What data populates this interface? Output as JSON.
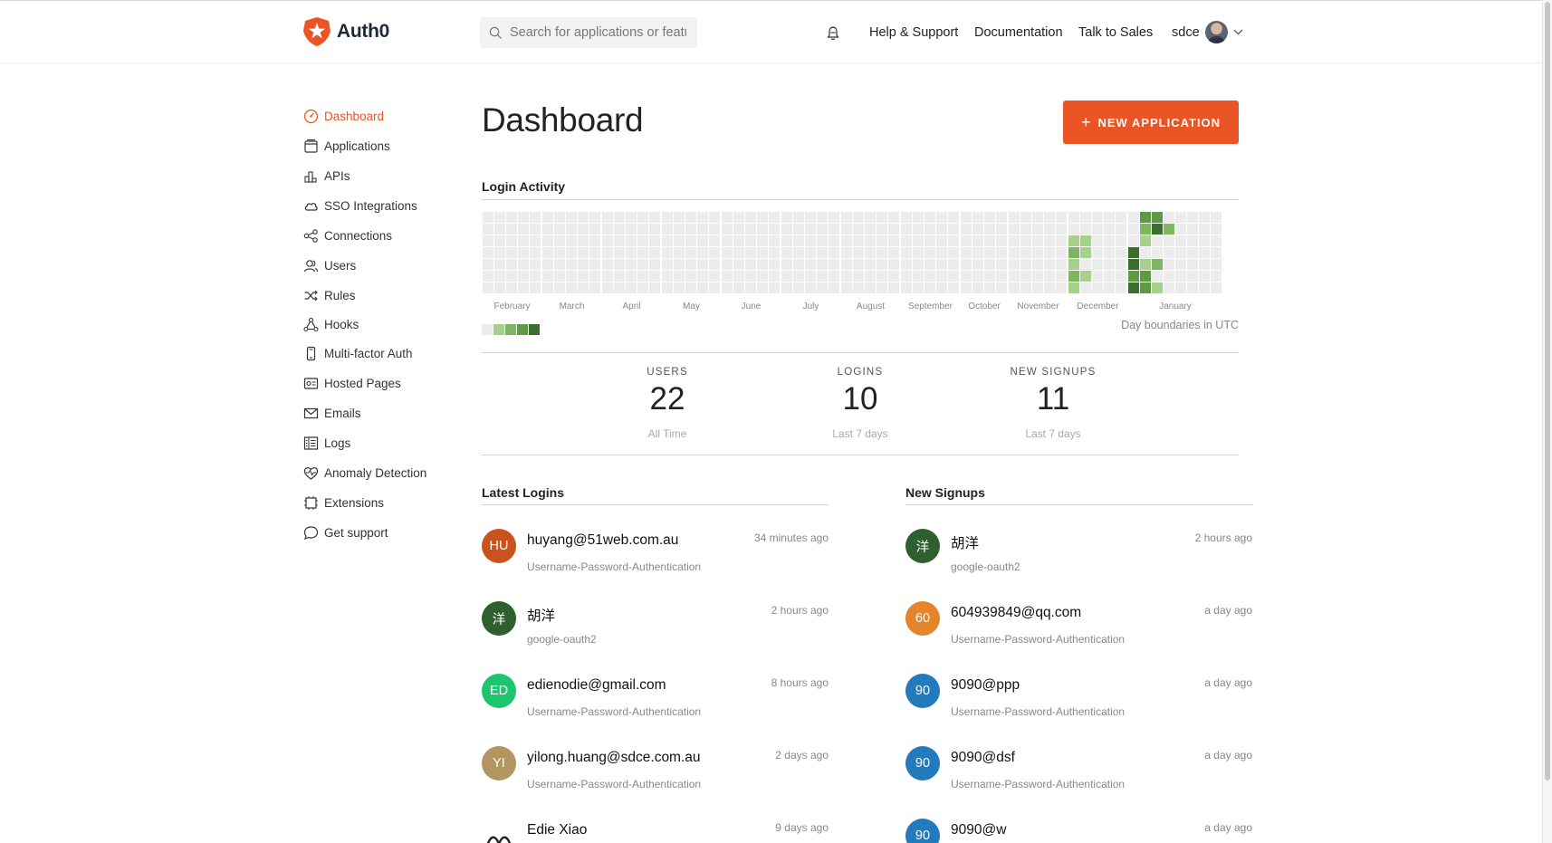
{
  "app": {
    "name": "Auth0"
  },
  "search": {
    "placeholder": "Search for applications or features"
  },
  "topnav": {
    "help": "Help & Support",
    "docs": "Documentation",
    "sales": "Talk to Sales",
    "tenant": "sdce"
  },
  "sidebar": {
    "items": [
      {
        "label": "Dashboard",
        "icon": "dashboard-icon",
        "active": true
      },
      {
        "label": "Applications",
        "icon": "applications-icon"
      },
      {
        "label": "APIs",
        "icon": "apis-icon"
      },
      {
        "label": "SSO Integrations",
        "icon": "cloud-icon"
      },
      {
        "label": "Connections",
        "icon": "connections-icon"
      },
      {
        "label": "Users",
        "icon": "users-icon"
      },
      {
        "label": "Rules",
        "icon": "rules-icon"
      },
      {
        "label": "Hooks",
        "icon": "hooks-icon"
      },
      {
        "label": "Multi-factor Auth",
        "icon": "mfa-icon"
      },
      {
        "label": "Hosted Pages",
        "icon": "hosted-pages-icon"
      },
      {
        "label": "Emails",
        "icon": "email-icon"
      },
      {
        "label": "Logs",
        "icon": "logs-icon"
      },
      {
        "label": "Anomaly Detection",
        "icon": "heart-icon"
      },
      {
        "label": "Extensions",
        "icon": "extensions-icon"
      },
      {
        "label": "Get support",
        "icon": "chat-icon"
      }
    ]
  },
  "main": {
    "title": "Dashboard",
    "new_app_label": "NEW APPLICATION",
    "login_activity": {
      "title": "Login Activity",
      "months": [
        "February",
        "March",
        "April",
        "May",
        "June",
        "July",
        "August",
        "September",
        "October",
        "November",
        "December",
        "January"
      ],
      "utc_note": "Day boundaries in UTC",
      "colors": [
        "#ececec",
        "#a8d08d",
        "#7db661",
        "#5c9a44",
        "#3b6e2a"
      ]
    },
    "stats": [
      {
        "label": "USERS",
        "value": "22",
        "sub": "All Time"
      },
      {
        "label": "LOGINS",
        "value": "10",
        "sub": "Last 7 days"
      },
      {
        "label": "NEW SIGNUPS",
        "value": "11",
        "sub": "Last 7 days"
      }
    ],
    "latest_logins": {
      "title": "Latest Logins",
      "items": [
        {
          "initials": "HU",
          "color": "#c9531e",
          "name": "huyang@51web.com.au",
          "connection": "Username-Password-Authentication",
          "time": "34 minutes ago"
        },
        {
          "initials": "洋",
          "color": "#2f5f2c",
          "name": "胡洋",
          "connection": "google-oauth2",
          "time": "2 hours ago"
        },
        {
          "initials": "ED",
          "color": "#1ec56f",
          "name": "edienodie@gmail.com",
          "connection": "Username-Password-Authentication",
          "time": "8 hours ago"
        },
        {
          "initials": "YI",
          "color": "#b3955f",
          "name": "yilong.huang@sdce.com.au",
          "connection": "Username-Password-Authentication",
          "time": "2 days ago"
        },
        {
          "initials": "",
          "color": "#ffffff",
          "name": "Edie Xiao",
          "connection": "",
          "time": "9 days ago"
        }
      ]
    },
    "new_signups": {
      "title": "New Signups",
      "items": [
        {
          "initials": "洋",
          "color": "#2f5f2c",
          "name": "胡洋",
          "connection": "google-oauth2",
          "time": "2 hours ago"
        },
        {
          "initials": "60",
          "color": "#e4852e",
          "name": "604939849@qq.com",
          "connection": "Username-Password-Authentication",
          "time": "a day ago"
        },
        {
          "initials": "90",
          "color": "#237bbd",
          "name": "9090@ppp",
          "connection": "Username-Password-Authentication",
          "time": "a day ago"
        },
        {
          "initials": "90",
          "color": "#237bbd",
          "name": "9090@dsf",
          "connection": "Username-Password-Authentication",
          "time": "a day ago"
        },
        {
          "initials": "90",
          "color": "#237bbd",
          "name": "9090@w",
          "connection": "",
          "time": "a day ago"
        }
      ]
    }
  }
}
